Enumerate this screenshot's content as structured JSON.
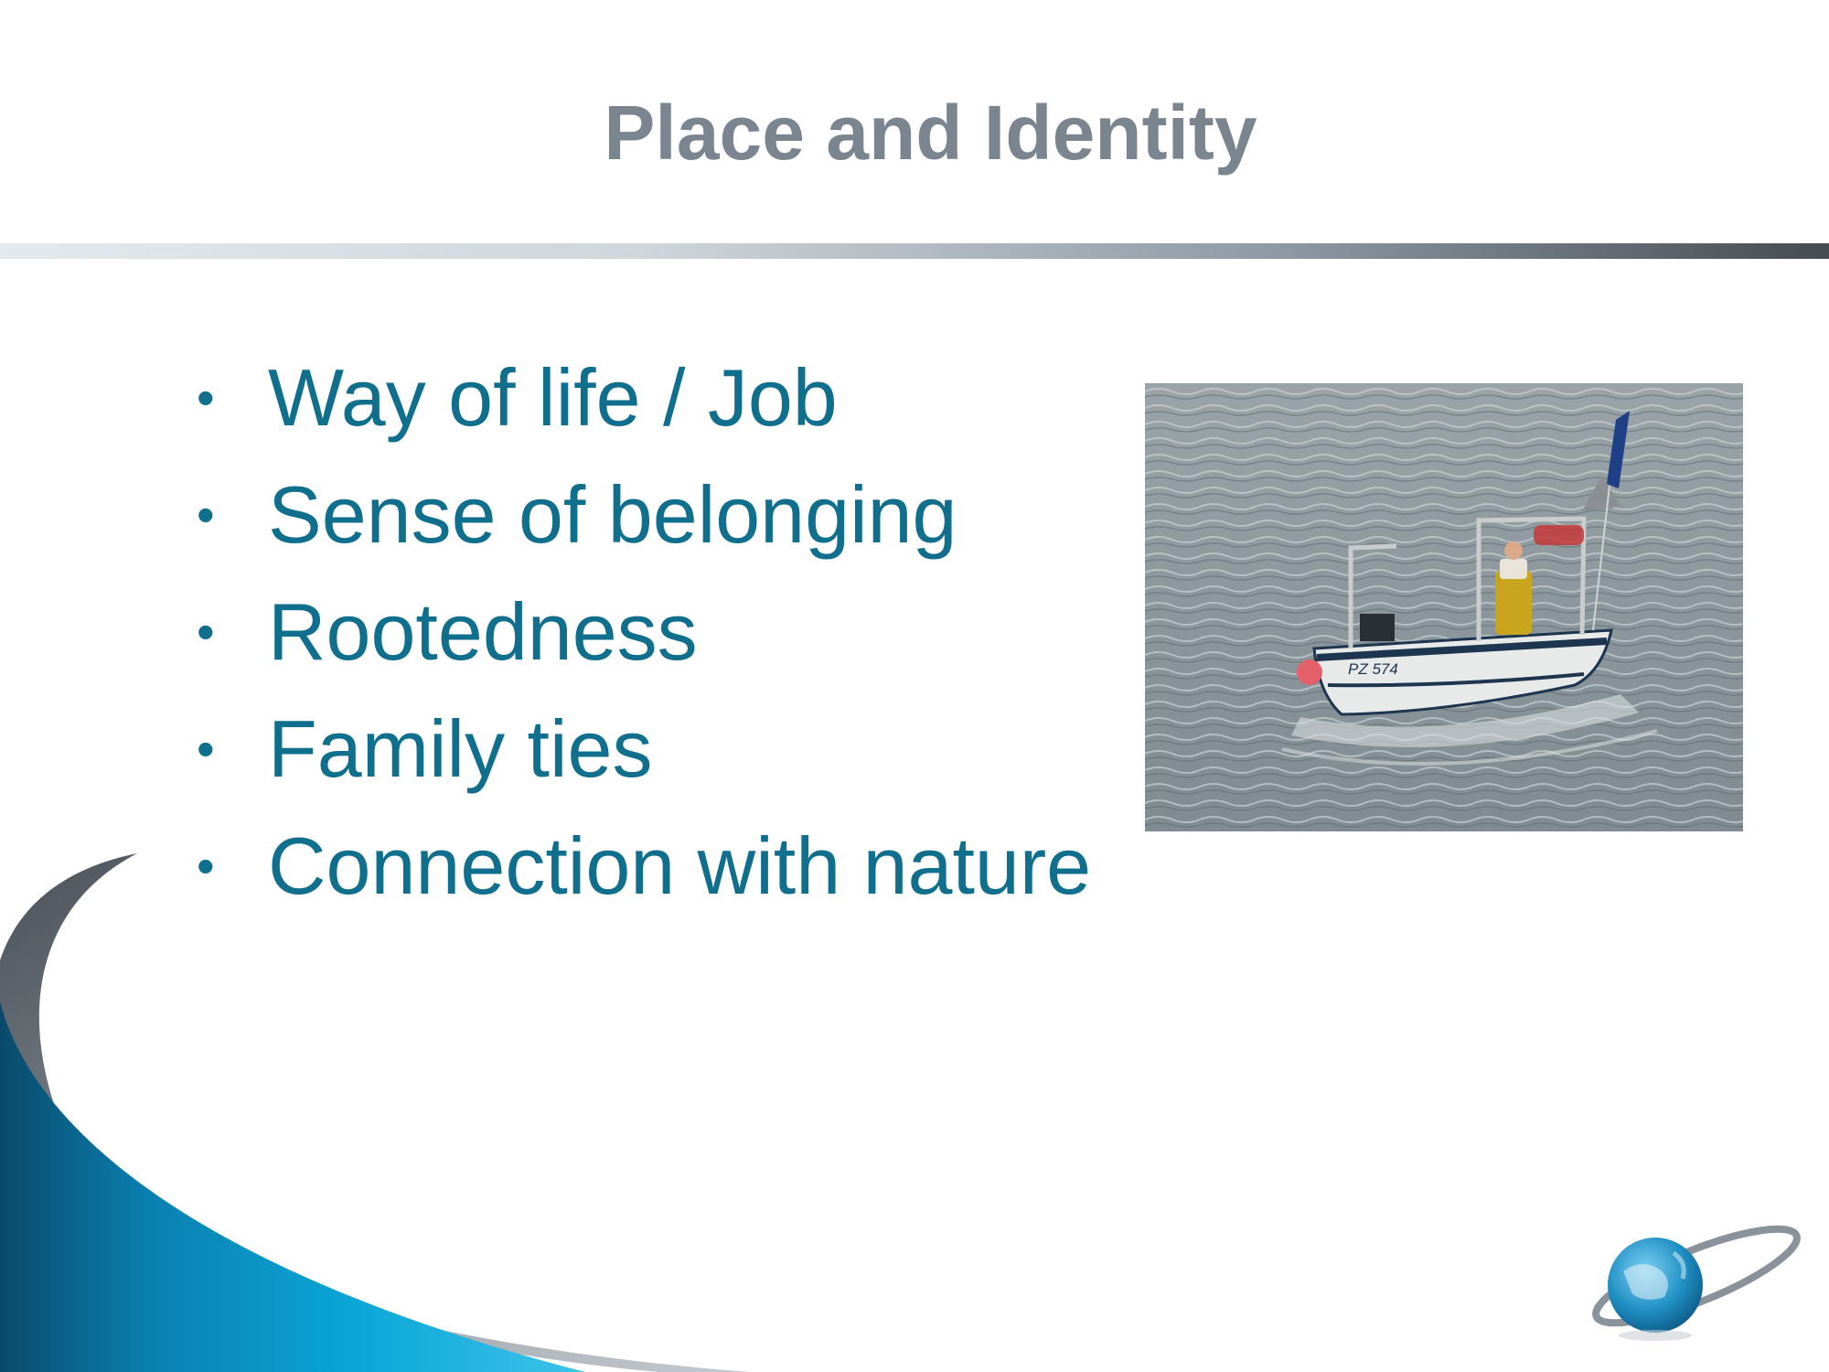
{
  "slide": {
    "title": "Place and Identity",
    "bullets": [
      "Way of life / Job",
      "Sense of belonging",
      "Rootedness",
      "Family ties",
      "Connection with nature"
    ],
    "photo": {
      "boat_registration": "PZ 574"
    }
  },
  "colors": {
    "title": "#7b8590",
    "bullet_text": "#106f8c",
    "swoosh_blue": "#0aa6d6",
    "swoosh_dark": "#0a4a6a",
    "swoosh_grey": "#5b636b",
    "logo_globe": "#1f8fc4"
  }
}
